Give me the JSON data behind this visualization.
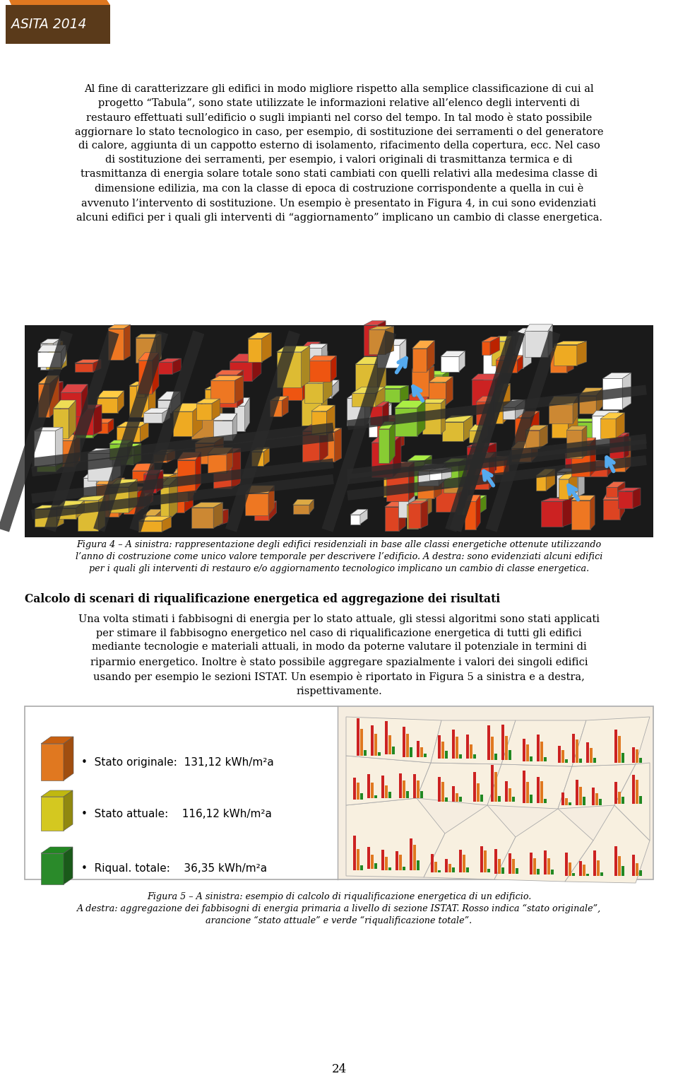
{
  "background_color": "#ffffff",
  "page_number": "24",
  "logo_text": "ASITA 2014",
  "logo_bg": "#5a3a1a",
  "logo_accent": "#e07820",
  "para_text": "Al fine di caratterizzare gli edifici in modo migliore rispetto alla semplice classificazione di cui al\nprogetto “Tabula”, sono state utilizzate le informazioni relative all’elenco degli interventi di\nrestauro effettuati sull’edificio o sugli impianti nel corso del tempo. In tal modo è stato possibile\naggiornare lo stato tecnologico in caso, per esempio, di sostituzione dei serramenti o del generatore\ndi calore, aggiunta di un cappotto esterno di isolamento, rifacimento della copertura, ecc. Nel caso\ndi sostituzione dei serramenti, per esempio, i valori originali di trasmittanza termica e di\ntrasmittanza di energia solare totale sono stati cambiati con quelli relativi alla medesima classe di\ndimensione edilizia, ma con la classe di epoca di costruzione corrispondente a quella in cui è\navvenuto l’intervento di sostituzione. Un esempio è presentato in Figura 4, in cui sono evidenziati\nalcuni edifici per i quali gli interventi di “aggiornamento” implicano un cambio di classe energetica.",
  "figure4_caption": "Figura 4 – A sinistra: rappresentazione degli edifici residenziali in base alle classi energetiche ottenute utilizzando\nl’anno di costruzione come unico valore temporale per descrivere l’edificio. A destra: sono evidenziati alcuni edifici\nper i quali gli interventi di restauro e/o aggiornamento tecnologico implicano un cambio di classe energetica.",
  "section_title": "Calcolo di scenari di riqualificazione energetica ed aggregazione dei risultati",
  "section_body": "Una volta stimati i fabbisogni di energia per lo stato attuale, gli stessi algoritmi sono stati applicati\nper stimare il fabbisogno energetico nel caso di riqualificazione energetica di tutti gli edifici\nmediante tecnologie e materiali attuali, in modo da poterne valutare il potenziale in termini di\nriparmio energetico. Inoltre è stato possibile aggregare spazialmente i valori dei singoli edifici\nusando per esempio le sezioni ISTAT. Un esempio è riportato in Figura 5 a sinistra e a destra,\nrispettivamente.",
  "figure5_caption_line1": "Figura 5 – A sinistra: esempio di calcolo di riqualificazione energetica di un edificio.",
  "figure5_caption_line2": "A destra: aggregazione dei fabbisogni di energia primaria a livello di sezione ISTAT. Rosso indica “stato originale”,",
  "figure5_caption_line3": "arancione “stato attuale” e verde “riqualificazione totale”.",
  "legend_items": [
    {
      "label": "Stato originale:  131,12 kWh/m²a",
      "color": "#e07820"
    },
    {
      "label": "Stato attuale:    116,12 kWh/m²a",
      "color": "#d4c020"
    },
    {
      "label": "Riqual. totale:    36,35 kWh/m²a",
      "color": "#2a8a2a"
    }
  ]
}
